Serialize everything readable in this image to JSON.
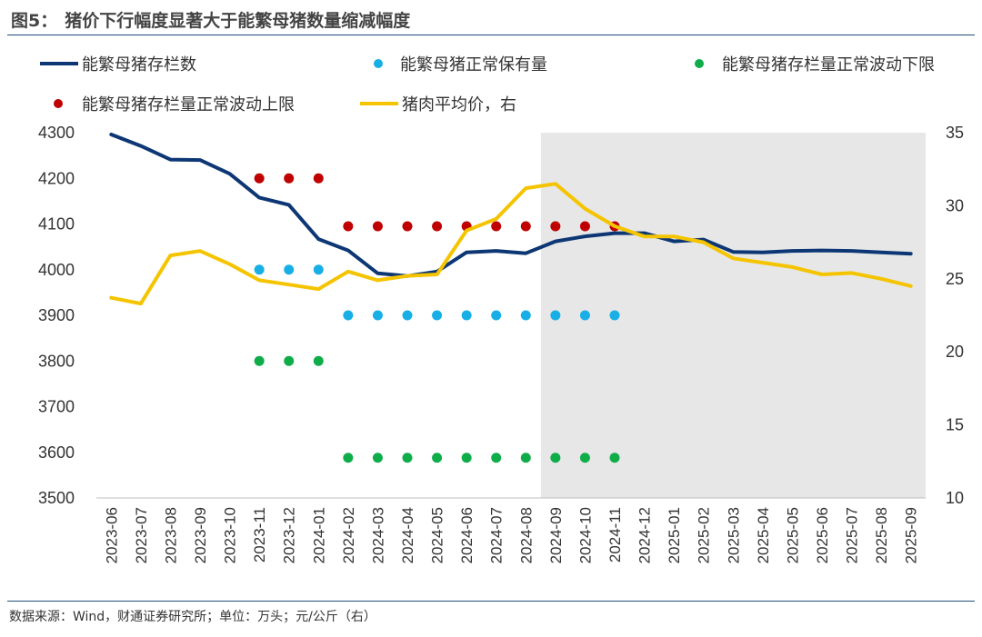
{
  "header": {
    "fig_no": "图5：",
    "title": "猪价下行幅度显著大于能繁母猪数量缩减幅度"
  },
  "footer": {
    "source": "数据来源：Wind，财通证券研究所；单位：万头；元/公斤（右）"
  },
  "colors": {
    "navy": "#0d3774",
    "cyan": "#17afe5",
    "green": "#0fad4a",
    "red": "#c00000",
    "yellow": "#f5c400",
    "shade": "#e7e7e7"
  },
  "chart_data": {
    "type": "line",
    "categories": [
      "2023-06",
      "2023-07",
      "2023-08",
      "2023-09",
      "2023-10",
      "2023-11",
      "2023-12",
      "2024-01",
      "2024-02",
      "2024-03",
      "2024-04",
      "2024-05",
      "2024-06",
      "2024-07",
      "2024-08",
      "2024-09",
      "2024-10",
      "2024-11",
      "2024-12",
      "2025-01",
      "2025-02",
      "2025-03",
      "2025-04",
      "2025-05",
      "2025-06",
      "2025-07",
      "2025-08",
      "2025-09"
    ],
    "y_left": {
      "min": 3500,
      "max": 4300,
      "ticks": [
        3500,
        3600,
        3700,
        3800,
        3900,
        4000,
        4100,
        4200,
        4300
      ]
    },
    "y_right": {
      "min": 10,
      "max": 35,
      "ticks": [
        10,
        15,
        20,
        25,
        30,
        35
      ]
    },
    "shaded_region": {
      "from": "2024-09",
      "to": "2025-09"
    },
    "series": [
      {
        "name": "能繁母猪存栏数",
        "kind": "line",
        "axis": "left",
        "color": "#0d3774",
        "values": [
          4296,
          4271,
          4241,
          4240,
          4210,
          4158,
          4142,
          4067,
          4042,
          3992,
          3986,
          3996,
          4038,
          4041,
          4036,
          4062,
          4073,
          4080,
          4080,
          4062,
          4066,
          4039,
          4038,
          4041,
          4042,
          4041,
          4038,
          4035
        ]
      },
      {
        "name": "能繁母猪正常保有量",
        "kind": "dots",
        "axis": "left",
        "color": "#17afe5",
        "values": [
          null,
          null,
          null,
          null,
          null,
          4000,
          4000,
          4000,
          3900,
          3900,
          3900,
          3900,
          3900,
          3900,
          3900,
          3900,
          3900,
          3900,
          null,
          null,
          null,
          null,
          null,
          null,
          null,
          null,
          null,
          null
        ]
      },
      {
        "name": "能繁母猪存栏量正常波动下限",
        "kind": "dots",
        "axis": "left",
        "color": "#0fad4a",
        "values": [
          null,
          null,
          null,
          null,
          null,
          3800,
          3800,
          3800,
          3588,
          3588,
          3588,
          3588,
          3588,
          3588,
          3588,
          3588,
          3588,
          3588,
          null,
          null,
          null,
          null,
          null,
          null,
          null,
          null,
          null,
          null
        ]
      },
      {
        "name": "能繁母猪存栏量正常波动上限",
        "kind": "dots",
        "axis": "left",
        "color": "#c00000",
        "values": [
          null,
          null,
          null,
          null,
          null,
          4200,
          4200,
          4200,
          4095,
          4095,
          4095,
          4095,
          4095,
          4095,
          4095,
          4095,
          4095,
          4095,
          null,
          null,
          null,
          null,
          null,
          null,
          null,
          null,
          null,
          null
        ]
      },
      {
        "name": "猪肉平均价，右",
        "kind": "line",
        "axis": "right",
        "color": "#f5c400",
        "values": [
          23.7,
          23.3,
          26.6,
          26.9,
          26.0,
          24.9,
          24.6,
          24.3,
          25.5,
          24.9,
          25.2,
          25.3,
          28.3,
          29.1,
          31.2,
          31.5,
          29.8,
          28.6,
          27.9,
          27.9,
          27.5,
          26.4,
          26.1,
          25.8,
          25.3,
          25.4,
          25.0,
          24.5
        ]
      }
    ]
  }
}
